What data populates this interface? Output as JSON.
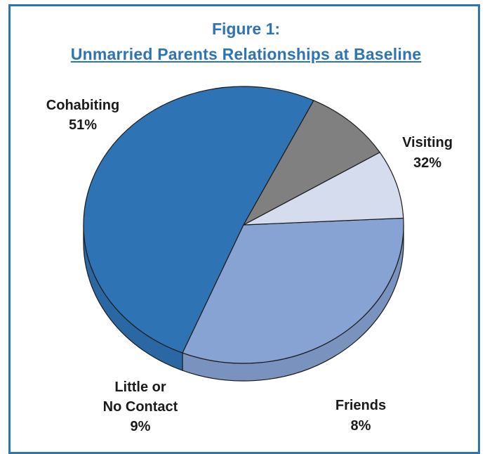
{
  "figure": {
    "number_label": "Figure 1:",
    "title": "Unmarried Parents Relationships at Baseline"
  },
  "colors": {
    "frame": "#2e74b5",
    "title": "#2e74b5"
  },
  "chart_data": {
    "type": "pie",
    "title": "Unmarried Parents Relationships at Baseline",
    "slices": [
      {
        "label": "Cohabiting",
        "value": 51,
        "value_label": "51%",
        "color": "#2e74b5"
      },
      {
        "label": "Visiting",
        "value": 32,
        "value_label": "32%",
        "color": "#87a3d3"
      },
      {
        "label": "Friends",
        "value": 8,
        "value_label": "8%",
        "color": "#d4dcee"
      },
      {
        "label": "Little or No Contact",
        "label_lines": [
          "Little or",
          "No Contact"
        ],
        "value": 9,
        "value_label": "9%",
        "color": "#808080"
      }
    ],
    "style": "3d-tilted",
    "legend": "none"
  }
}
